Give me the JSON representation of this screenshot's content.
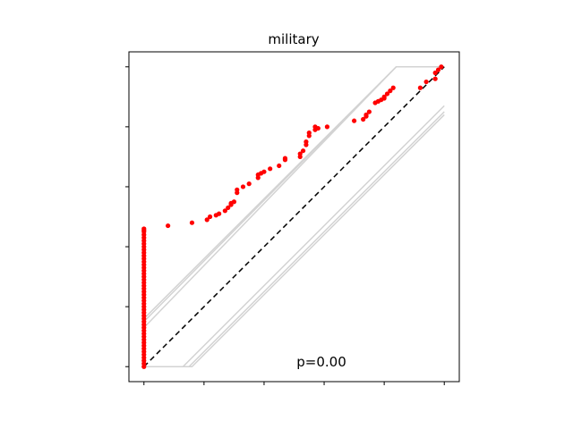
{
  "chart_data": {
    "type": "scatter",
    "title": "military",
    "annotation": "p=0.00",
    "xlabel": "",
    "ylabel": "",
    "xlim": [
      -0.05,
      1.05
    ],
    "ylim": [
      -0.05,
      1.05
    ],
    "x_ticks": [
      0,
      0.2,
      0.4,
      0.6,
      0.8,
      1.0
    ],
    "y_ticks": [
      0,
      0.2,
      0.4,
      0.6,
      0.8,
      1.0
    ],
    "tick_labels_visible": false,
    "grid": false,
    "diagonal": {
      "x": [
        0,
        1
      ],
      "y": [
        0,
        1
      ],
      "style": "dashed",
      "color": "#000000"
    },
    "bands": [
      {
        "x": [
          0,
          0,
          0.84,
          1.0
        ],
        "y": [
          0.15,
          0.15,
          1.0,
          1.0
        ]
      },
      {
        "x": [
          0,
          0,
          0.84,
          1.0
        ],
        "y": [
          0.13,
          0.13,
          1.0,
          1.0
        ]
      },
      {
        "x": [
          0,
          0,
          0.84,
          1.0
        ],
        "y": [
          0.16,
          0.16,
          1.0,
          1.0
        ]
      },
      {
        "x": [
          0,
          0.15,
          1.0,
          1.0
        ],
        "y": [
          0,
          0,
          0.85,
          0.85
        ]
      },
      {
        "x": [
          0,
          0.13,
          1.0,
          1.0
        ],
        "y": [
          0,
          0,
          0.87,
          0.87
        ]
      },
      {
        "x": [
          0,
          0.16,
          1.0,
          1.0
        ],
        "y": [
          0,
          0,
          0.84,
          0.84
        ]
      }
    ],
    "band_color": "#d3d3d3",
    "point_color": "#ff0000",
    "series": [
      {
        "x": [
          0,
          0,
          0,
          0,
          0,
          0,
          0,
          0,
          0,
          0,
          0,
          0,
          0,
          0,
          0,
          0,
          0,
          0,
          0,
          0,
          0,
          0,
          0,
          0,
          0,
          0,
          0,
          0,
          0,
          0,
          0,
          0,
          0,
          0,
          0,
          0,
          0,
          0,
          0,
          0,
          0,
          0,
          0,
          0,
          0,
          0,
          0,
          0,
          0.08,
          0.16,
          0.21,
          0.22,
          0.24,
          0.25,
          0.27,
          0.28,
          0.29,
          0.29,
          0.3,
          0.31,
          0.31,
          0.33,
          0.35,
          0.38,
          0.38,
          0.39,
          0.4,
          0.42,
          0.45,
          0.47,
          0.47,
          0.52,
          0.52,
          0.53,
          0.54,
          0.54,
          0.55,
          0.55,
          0.57,
          0.57,
          0.58,
          0.61,
          0.7,
          0.73,
          0.74,
          0.74,
          0.75,
          0.77,
          0.78,
          0.79,
          0.8,
          0.8,
          0.81,
          0.82,
          0.83,
          0.92,
          0.94,
          0.97,
          0.97,
          0.98,
          0.99
        ],
        "y": [
          0.0,
          0.01,
          0.02,
          0.03,
          0.04,
          0.05,
          0.06,
          0.07,
          0.08,
          0.09,
          0.1,
          0.11,
          0.12,
          0.13,
          0.14,
          0.15,
          0.16,
          0.17,
          0.18,
          0.19,
          0.2,
          0.21,
          0.22,
          0.23,
          0.24,
          0.25,
          0.26,
          0.27,
          0.28,
          0.29,
          0.3,
          0.31,
          0.32,
          0.33,
          0.34,
          0.35,
          0.36,
          0.37,
          0.38,
          0.39,
          0.4,
          0.41,
          0.42,
          0.43,
          0.44,
          0.45,
          0.455,
          0.46,
          0.47,
          0.48,
          0.49,
          0.5,
          0.505,
          0.51,
          0.52,
          0.53,
          0.54,
          0.545,
          0.55,
          0.58,
          0.59,
          0.6,
          0.61,
          0.63,
          0.64,
          0.645,
          0.65,
          0.66,
          0.67,
          0.69,
          0.695,
          0.7,
          0.71,
          0.72,
          0.74,
          0.75,
          0.77,
          0.78,
          0.79,
          0.8,
          0.795,
          0.8,
          0.82,
          0.825,
          0.835,
          0.84,
          0.85,
          0.88,
          0.885,
          0.89,
          0.895,
          0.9,
          0.91,
          0.92,
          0.93,
          0.93,
          0.95,
          0.96,
          0.98,
          0.99,
          1.0
        ]
      }
    ]
  }
}
